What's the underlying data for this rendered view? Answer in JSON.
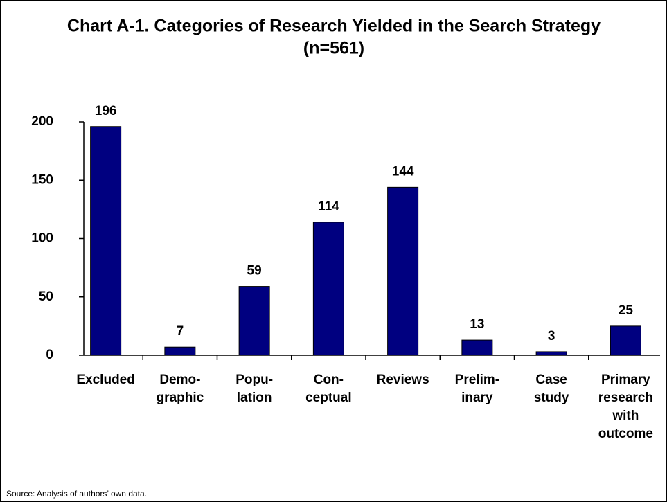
{
  "chart_data": {
    "type": "bar",
    "title": "Chart A-1. Categories of Research Yielded in the Search Strategy",
    "subtitle": "(n=561)",
    "categories": [
      "Excluded",
      "Demo-\ngraphic",
      "Popu-\nlation",
      "Con-\nceptual",
      "Reviews",
      "Prelim-\ninary",
      "Case\nstudy",
      "Primary\nresearch\nwith\noutcome"
    ],
    "values": [
      196,
      7,
      59,
      114,
      144,
      13,
      3,
      25
    ],
    "color": "#000080",
    "ylim": [
      0,
      200
    ],
    "yticks": [
      0,
      50,
      100,
      150,
      200
    ],
    "grid": false,
    "source": "Source: Analysis of authors’ own data."
  }
}
